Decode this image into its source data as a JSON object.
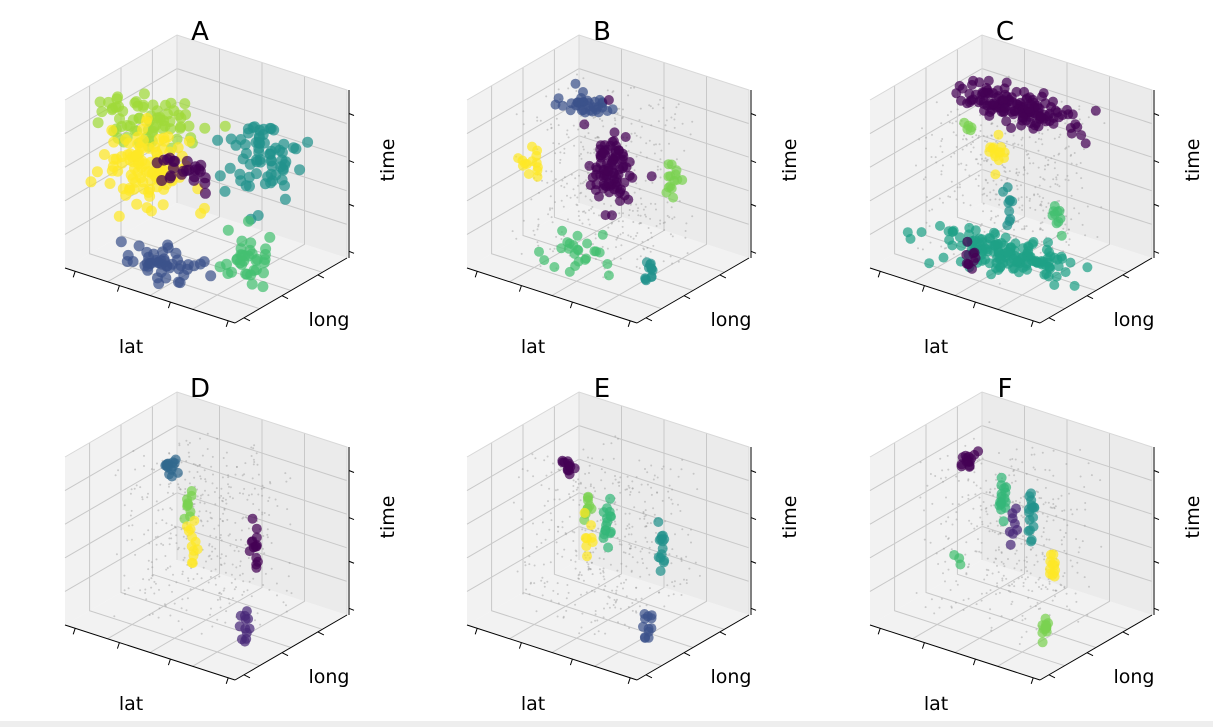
{
  "chart_data": [
    {
      "type": "scatter",
      "title": "A",
      "xlabel": "lat",
      "ylabel": "long",
      "zlabel": "time",
      "projection": "3d",
      "grid": true,
      "background_points": false,
      "clusters": [
        {
          "color": "#a0da39",
          "center": [
            0.25,
            0.3,
            0.85
          ],
          "spread": [
            0.22,
            0.18,
            0.1
          ],
          "count": 70
        },
        {
          "color": "#fde725",
          "center": [
            0.25,
            0.35,
            0.55
          ],
          "spread": [
            0.18,
            0.15,
            0.18
          ],
          "count": 110
        },
        {
          "color": "#440154",
          "center": [
            0.4,
            0.45,
            0.55
          ],
          "spread": [
            0.1,
            0.1,
            0.12
          ],
          "count": 25
        },
        {
          "color": "#21918c",
          "center": [
            0.75,
            0.65,
            0.65
          ],
          "spread": [
            0.15,
            0.15,
            0.22
          ],
          "count": 70
        },
        {
          "color": "#3b528b",
          "center": [
            0.45,
            0.2,
            0.1
          ],
          "spread": [
            0.2,
            0.12,
            0.06
          ],
          "count": 45
        },
        {
          "color": "#44bf70",
          "center": [
            0.8,
            0.45,
            0.15
          ],
          "spread": [
            0.12,
            0.12,
            0.1
          ],
          "count": 35
        }
      ]
    },
    {
      "type": "scatter",
      "title": "B",
      "xlabel": "lat",
      "ylabel": "long",
      "zlabel": "time",
      "projection": "3d",
      "grid": true,
      "background_points": true,
      "clusters": [
        {
          "color": "#3b528b",
          "center": [
            0.35,
            0.55,
            0.88
          ],
          "spread": [
            0.15,
            0.08,
            0.05
          ],
          "count": 35
        },
        {
          "color": "#440154",
          "center": [
            0.55,
            0.45,
            0.6
          ],
          "spread": [
            0.1,
            0.1,
            0.18
          ],
          "count": 90
        },
        {
          "color": "#fde725",
          "center": [
            0.12,
            0.4,
            0.5
          ],
          "spread": [
            0.04,
            0.04,
            0.08
          ],
          "count": 14
        },
        {
          "color": "#7ad151",
          "center": [
            0.85,
            0.55,
            0.55
          ],
          "spread": [
            0.03,
            0.03,
            0.12
          ],
          "count": 14
        },
        {
          "color": "#44bf70",
          "center": [
            0.45,
            0.25,
            0.15
          ],
          "spread": [
            0.15,
            0.08,
            0.1
          ],
          "count": 25
        },
        {
          "color": "#21918c",
          "center": [
            0.85,
            0.35,
            0.15
          ],
          "spread": [
            0.03,
            0.03,
            0.1
          ],
          "count": 12
        }
      ]
    },
    {
      "type": "scatter",
      "title": "C",
      "xlabel": "lat",
      "ylabel": "long",
      "zlabel": "time",
      "projection": "3d",
      "grid": true,
      "background_points": true,
      "clusters": [
        {
          "color": "#440154",
          "center": [
            0.5,
            0.6,
            0.88
          ],
          "spread": [
            0.3,
            0.12,
            0.05
          ],
          "count": 140
        },
        {
          "color": "#fde725",
          "center": [
            0.45,
            0.45,
            0.65
          ],
          "spread": [
            0.04,
            0.04,
            0.08
          ],
          "count": 14
        },
        {
          "color": "#7ad151",
          "center": [
            0.28,
            0.45,
            0.75
          ],
          "spread": [
            0.02,
            0.02,
            0.04
          ],
          "count": 5
        },
        {
          "color": "#21918c",
          "center": [
            0.55,
            0.4,
            0.4
          ],
          "spread": [
            0.02,
            0.02,
            0.1
          ],
          "count": 10
        },
        {
          "color": "#44bf70",
          "center": [
            0.8,
            0.45,
            0.4
          ],
          "spread": [
            0.02,
            0.02,
            0.1
          ],
          "count": 10
        },
        {
          "color": "#1fa187",
          "center": [
            0.55,
            0.4,
            0.1
          ],
          "spread": [
            0.3,
            0.15,
            0.06
          ],
          "count": 150
        },
        {
          "color": "#440154",
          "center": [
            0.4,
            0.3,
            0.08
          ],
          "spread": [
            0.03,
            0.03,
            0.06
          ],
          "count": 10
        }
      ]
    },
    {
      "type": "scatter",
      "title": "D",
      "xlabel": "lat",
      "ylabel": "long",
      "zlabel": "time",
      "projection": "3d",
      "grid": true,
      "background_points": true,
      "clusters": [
        {
          "color": "#31688e",
          "center": [
            0.25,
            0.55,
            0.8
          ],
          "spread": [
            0.03,
            0.03,
            0.05
          ],
          "count": 14
        },
        {
          "color": "#7ad151",
          "center": [
            0.4,
            0.5,
            0.65
          ],
          "spread": [
            0.02,
            0.02,
            0.08
          ],
          "count": 10
        },
        {
          "color": "#fde725",
          "center": [
            0.45,
            0.45,
            0.45
          ],
          "spread": [
            0.02,
            0.02,
            0.12
          ],
          "count": 12
        },
        {
          "color": "#440154",
          "center": [
            0.75,
            0.55,
            0.5
          ],
          "spread": [
            0.02,
            0.02,
            0.1
          ],
          "count": 14
        },
        {
          "color": "#482878",
          "center": [
            0.8,
            0.4,
            0.1
          ],
          "spread": [
            0.02,
            0.02,
            0.1
          ],
          "count": 12
        }
      ]
    },
    {
      "type": "scatter",
      "title": "E",
      "xlabel": "lat",
      "ylabel": "long",
      "zlabel": "time",
      "projection": "3d",
      "grid": true,
      "background_points": true,
      "clusters": [
        {
          "color": "#440154",
          "center": [
            0.22,
            0.55,
            0.82
          ],
          "spread": [
            0.03,
            0.03,
            0.05
          ],
          "count": 12
        },
        {
          "color": "#7ad151",
          "center": [
            0.38,
            0.5,
            0.65
          ],
          "spread": [
            0.03,
            0.03,
            0.08
          ],
          "count": 10
        },
        {
          "color": "#fde725",
          "center": [
            0.42,
            0.45,
            0.48
          ],
          "spread": [
            0.02,
            0.02,
            0.1
          ],
          "count": 8
        },
        {
          "color": "#35b779",
          "center": [
            0.5,
            0.5,
            0.55
          ],
          "spread": [
            0.02,
            0.02,
            0.15
          ],
          "count": 16
        },
        {
          "color": "#21918c",
          "center": [
            0.78,
            0.55,
            0.5
          ],
          "spread": [
            0.02,
            0.02,
            0.1
          ],
          "count": 14
        },
        {
          "color": "#3b528b",
          "center": [
            0.8,
            0.4,
            0.08
          ],
          "spread": [
            0.02,
            0.02,
            0.08
          ],
          "count": 12
        }
      ]
    },
    {
      "type": "scatter",
      "title": "F",
      "xlabel": "lat",
      "ylabel": "long",
      "zlabel": "time",
      "projection": "3d",
      "grid": true,
      "background_points": true,
      "clusters": [
        {
          "color": "#440154",
          "center": [
            0.22,
            0.55,
            0.82
          ],
          "spread": [
            0.03,
            0.03,
            0.05
          ],
          "count": 14
        },
        {
          "color": "#35b779",
          "center": [
            0.45,
            0.5,
            0.7
          ],
          "spread": [
            0.02,
            0.02,
            0.15
          ],
          "count": 16
        },
        {
          "color": "#21918c",
          "center": [
            0.62,
            0.5,
            0.65
          ],
          "spread": [
            0.02,
            0.02,
            0.15
          ],
          "count": 16
        },
        {
          "color": "#482878",
          "center": [
            0.55,
            0.45,
            0.6
          ],
          "spread": [
            0.03,
            0.03,
            0.15
          ],
          "count": 8
        },
        {
          "color": "#fde725",
          "center": [
            0.78,
            0.45,
            0.45
          ],
          "spread": [
            0.02,
            0.02,
            0.1
          ],
          "count": 12
        },
        {
          "color": "#7ad151",
          "center": [
            0.8,
            0.35,
            0.1
          ],
          "spread": [
            0.02,
            0.02,
            0.08
          ],
          "count": 12
        },
        {
          "color": "#44bf70",
          "center": [
            0.3,
            0.35,
            0.35
          ],
          "spread": [
            0.03,
            0.03,
            0.05
          ],
          "count": 3
        }
      ]
    }
  ]
}
